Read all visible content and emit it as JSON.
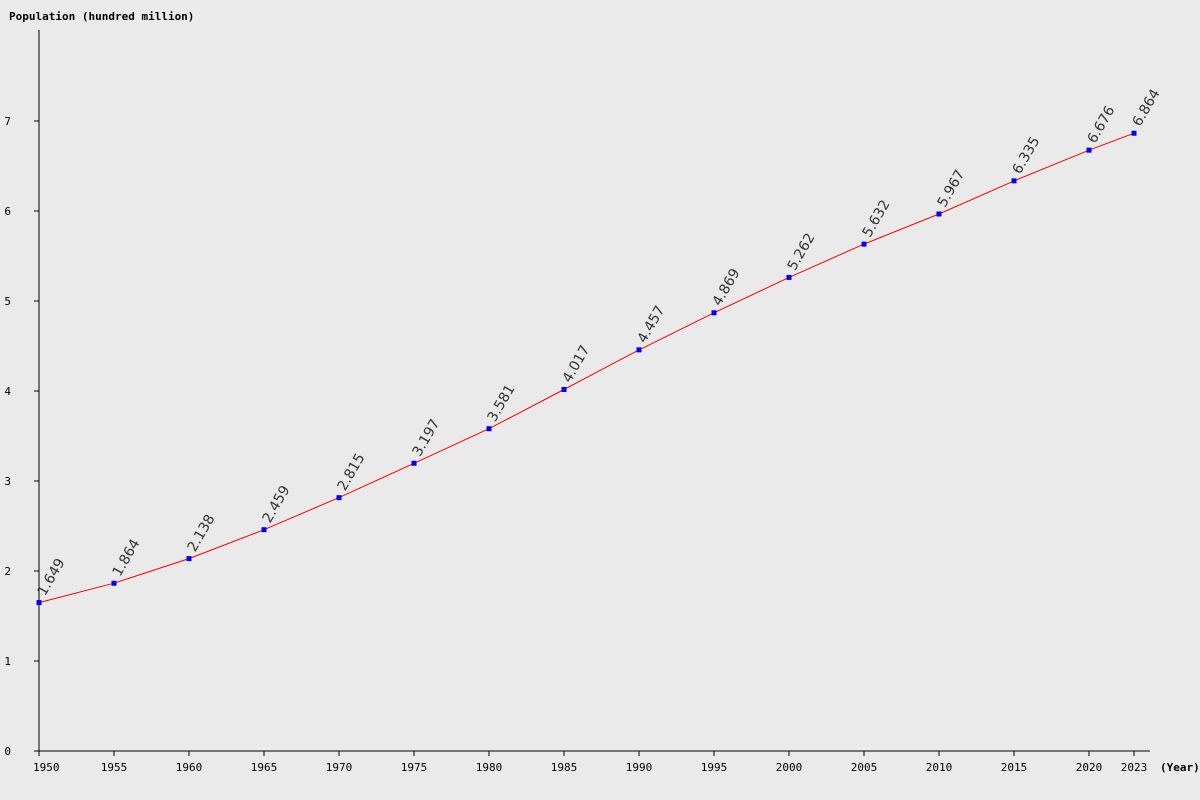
{
  "chart_data": {
    "type": "line",
    "ylabel": "Population (hundred million)",
    "xlabel": "(Year)",
    "x": [
      1950,
      1955,
      1960,
      1965,
      1970,
      1975,
      1980,
      1985,
      1990,
      1995,
      2000,
      2005,
      2010,
      2015,
      2020,
      2023
    ],
    "series": [
      {
        "values": [
          1.649,
          1.864,
          2.138,
          2.459,
          2.815,
          3.197,
          3.581,
          4.017,
          4.457,
          4.869,
          5.262,
          5.632,
          5.967,
          6.335,
          6.676,
          6.864
        ],
        "labels": [
          "1.649",
          "1.864",
          "2.138",
          "2.459",
          "2.815",
          "3.197",
          "3.581",
          "4.017",
          "4.457",
          "4.869",
          "5.262",
          "5.632",
          "5.967",
          "6.335",
          "6.676",
          "6.864"
        ]
      }
    ],
    "x_ticks": [
      "1950",
      "1955",
      "1960",
      "1965",
      "1970",
      "1975",
      "1980",
      "1985",
      "1990",
      "1995",
      "2000",
      "2005",
      "2010",
      "2015",
      "2020",
      "2023"
    ],
    "y_ticks": [
      "0",
      "1",
      "2",
      "3",
      "4",
      "5",
      "6",
      "7"
    ],
    "ylim": [
      0,
      8
    ],
    "xlim": [
      1950,
      2023
    ],
    "grid": false,
    "colors": {
      "background": "#eaeaea",
      "line": "#ff0000",
      "marker": "#0000ff",
      "axis": "#000000",
      "data_label": "#333333"
    }
  }
}
